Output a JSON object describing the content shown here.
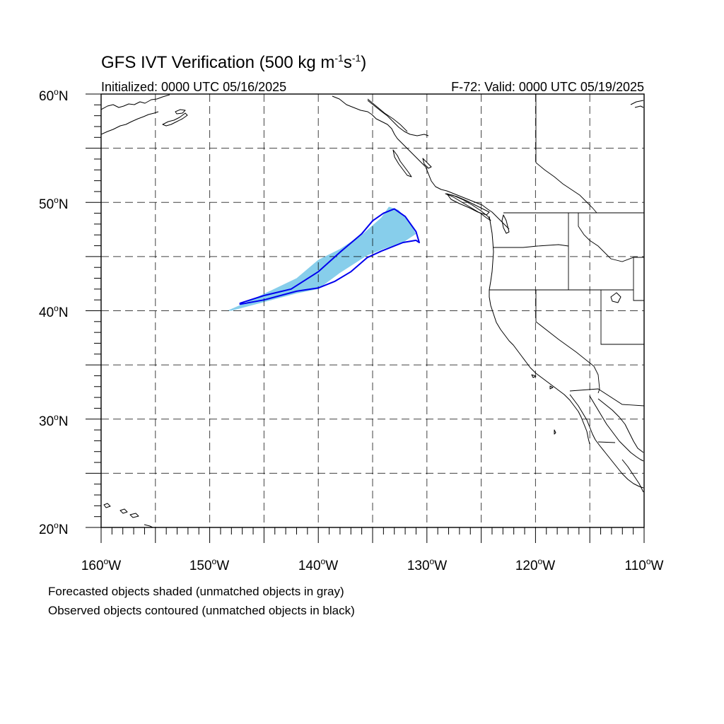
{
  "figure": {
    "title_main": "GFS IVT Verification (500 kg m",
    "title_sup1": "-1",
    "title_mid": "s",
    "title_sup2": "-1",
    "title_end": ")",
    "initialized": "Initialized: 0000 UTC 05/16/2025",
    "valid": "F-72: Valid: 0000 UTC 05/19/2025",
    "caption_line1": "Forecasted objects shaded (unmatched objects in gray)",
    "caption_line2": "Observed objects contoured (unmatched objects in black)"
  },
  "map": {
    "projection": "cylindrical equidistant",
    "lon_range": [
      -160,
      -110
    ],
    "lat_range": [
      20,
      60
    ],
    "grid_spacing_deg": 5,
    "lat_labels": [
      {
        "deg": "60",
        "hemi": "N"
      },
      {
        "deg": "50",
        "hemi": "N"
      },
      {
        "deg": "40",
        "hemi": "N"
      },
      {
        "deg": "30",
        "hemi": "N"
      },
      {
        "deg": "20",
        "hemi": "N"
      }
    ],
    "lon_labels": [
      {
        "deg": "160",
        "hemi": "W"
      },
      {
        "deg": "150",
        "hemi": "W"
      },
      {
        "deg": "140",
        "hemi": "W"
      },
      {
        "deg": "130",
        "hemi": "W"
      },
      {
        "deg": "120",
        "hemi": "W"
      },
      {
        "deg": "110",
        "hemi": "W"
      }
    ],
    "degree_symbol": "o"
  },
  "objects": {
    "forecast_color": "#87ceeb",
    "observed_color": "#0000ee",
    "forecast_object": [
      [
        -148.4,
        40.0
      ],
      [
        -147.0,
        40.6
      ],
      [
        -144.5,
        41.8
      ],
      [
        -142.0,
        43.0
      ],
      [
        -140.0,
        44.7
      ],
      [
        -138.0,
        45.7
      ],
      [
        -136.0,
        47.0
      ],
      [
        -134.2,
        48.6
      ],
      [
        -133.5,
        49.6
      ],
      [
        -132.6,
        49.3
      ],
      [
        -131.5,
        48.0
      ],
      [
        -131.0,
        47.1
      ],
      [
        -132.2,
        46.3
      ],
      [
        -134.0,
        45.7
      ],
      [
        -135.5,
        45.1
      ],
      [
        -138.0,
        43.5
      ],
      [
        -140.0,
        42.0
      ],
      [
        -142.0,
        41.6
      ],
      [
        -145.0,
        40.8
      ],
      [
        -148.0,
        40.0
      ]
    ],
    "observed_object": [
      [
        -147.2,
        40.7
      ],
      [
        -145.0,
        41.4
      ],
      [
        -142.5,
        42.0
      ],
      [
        -140.0,
        43.6
      ],
      [
        -138.0,
        45.4
      ],
      [
        -136.0,
        47.1
      ],
      [
        -135.0,
        48.3
      ],
      [
        -134.0,
        49.0
      ],
      [
        -133.0,
        49.4
      ],
      [
        -132.0,
        48.7
      ],
      [
        -131.0,
        47.3
      ],
      [
        -130.7,
        46.3
      ],
      [
        -131.0,
        46.5
      ],
      [
        -132.2,
        46.3
      ],
      [
        -134.2,
        45.5
      ],
      [
        -135.5,
        44.9
      ],
      [
        -137.0,
        43.6
      ],
      [
        -138.5,
        42.7
      ],
      [
        -140.0,
        42.1
      ],
      [
        -142.0,
        41.8
      ],
      [
        -145.0,
        41.0
      ],
      [
        -147.2,
        40.6
      ]
    ]
  }
}
